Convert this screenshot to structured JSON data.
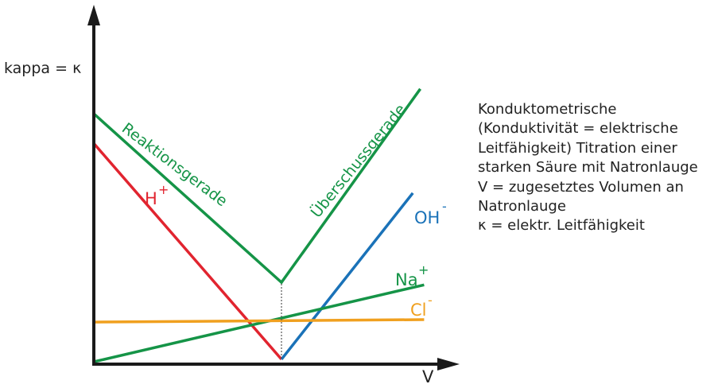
{
  "chart_data": {
    "type": "line",
    "ylabel": "kappa = κ",
    "xlabel": "V",
    "grid": false,
    "xlim": [
      0,
      1
    ],
    "ylim": [
      0,
      1
    ],
    "equivalence_point_x": 0.5,
    "series": [
      {
        "name": "Reaktionsgerade",
        "color": "#159447",
        "x": [
          0,
          0.5,
          0.87
        ],
        "y": [
          1.0,
          0.32,
          1.1
        ]
      },
      {
        "name": "Überschussgerade",
        "color": "#159447",
        "x": [],
        "y": []
      },
      {
        "name": "H",
        "sup": "+",
        "color": "#e1242f",
        "x": [
          0,
          0.5
        ],
        "y": [
          0.88,
          0.01
        ]
      },
      {
        "name": "OH",
        "sup": "-",
        "color": "#1a72b8",
        "x": [
          0.5,
          0.85
        ],
        "y": [
          0.01,
          0.68
        ]
      },
      {
        "name": "Na",
        "sup": "+",
        "color": "#159447",
        "x": [
          0,
          0.88
        ],
        "y": [
          0.0,
          0.31
        ]
      },
      {
        "name": "Cl",
        "sup": "-",
        "color": "#f0a01f",
        "x": [
          0,
          0.88
        ],
        "y": [
          0.16,
          0.17
        ]
      }
    ]
  },
  "description_lines": [
    "Konduktometrische",
    "(Konduktivität = elektrische",
    "Leitfähigkeit) Titration einer",
    "starken Säure mit Natronlauge",
    "V = zugesetztes Volumen an",
    "Natronlauge",
    "κ = elektr. Leitfähigkeit"
  ]
}
